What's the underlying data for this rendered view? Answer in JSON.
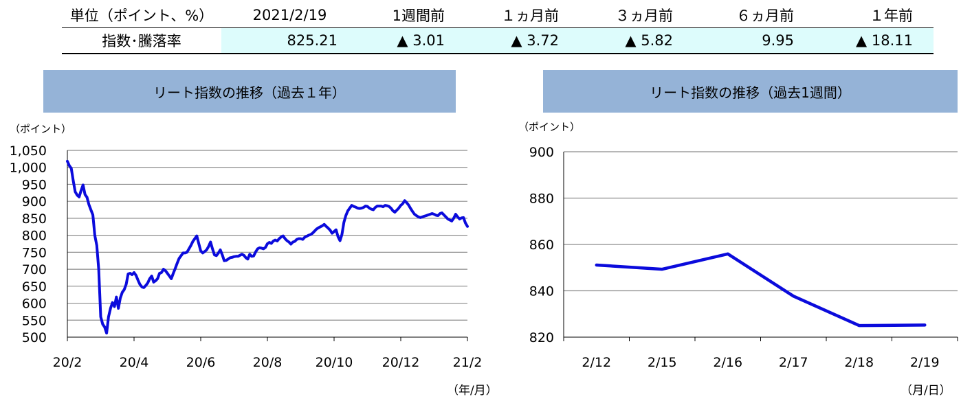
{
  "summary": {
    "headers": [
      "単位（ポイント、%）",
      "2021/2/19",
      "1週間前",
      "１ヵ月前",
      "３ヵ月前",
      "６ヵ月前",
      "１年前"
    ],
    "row_label": "指数･騰落率",
    "values": [
      "825.21",
      "▲ 3.01",
      "▲ 3.72",
      "▲ 5.82",
      "9.95",
      "▲ 18.11"
    ]
  },
  "line_color": "#0b0bdc",
  "chart_data": [
    {
      "type": "line",
      "title": "リート指数の推移（過去１年）",
      "ylabel": "（ポイント）",
      "xlabel": "（年/月）",
      "ylim": [
        500,
        1050
      ],
      "yticks": [
        "500",
        "550",
        "600",
        "650",
        "700",
        "750",
        "800",
        "850",
        "900",
        "950",
        "1,000",
        "1,050"
      ],
      "xticks": [
        "20/2",
        "20/4",
        "20/6",
        "20/8",
        "20/10",
        "20/12",
        "21/2"
      ],
      "grid": true,
      "series": [
        {
          "values": [
            1018,
            1005,
            997,
            960,
            928,
            918,
            913,
            932,
            948,
            920,
            912,
            890,
            875,
            860,
            800,
            770,
            700,
            560,
            538,
            530,
            512,
            560,
            585,
            602,
            590,
            618,
            585,
            615,
            632,
            640,
            656,
            686,
            688,
            684,
            690,
            682,
            668,
            655,
            648,
            646,
            652,
            660,
            672,
            680,
            662,
            666,
            672,
            688,
            690,
            700,
            696,
            688,
            680,
            672,
            688,
            702,
            718,
            732,
            740,
            748,
            748,
            750,
            760,
            770,
            782,
            790,
            798,
            776,
            754,
            748,
            752,
            757,
            767,
            780,
            760,
            742,
            740,
            748,
            757,
            742,
            725,
            726,
            730,
            734,
            735,
            737,
            738,
            738,
            741,
            744,
            741,
            734,
            730,
            744,
            738,
            739,
            751,
            760,
            763,
            762,
            760,
            764,
            775,
            779,
            776,
            783,
            786,
            783,
            790,
            795,
            798,
            790,
            784,
            780,
            774,
            780,
            782,
            788,
            790,
            790,
            788,
            794,
            797,
            800,
            802,
            806,
            812,
            818,
            822,
            825,
            828,
            832,
            826,
            821,
            815,
            806,
            811,
            816,
            796,
            784,
            802,
            838,
            858,
            872,
            880,
            888,
            885,
            883,
            880,
            879,
            880,
            882,
            886,
            885,
            880,
            877,
            875,
            882,
            886,
            886,
            886,
            884,
            888,
            887,
            885,
            880,
            872,
            868,
            874,
            880,
            888,
            893,
            902,
            896,
            889,
            879,
            870,
            862,
            858,
            854,
            852,
            854,
            856,
            858,
            860,
            862,
            864,
            862,
            859,
            858,
            864,
            866,
            860,
            854,
            848,
            845,
            842,
            850,
            862,
            854,
            848,
            851,
            852,
            836,
            826
          ]
        }
      ]
    },
    {
      "type": "line",
      "title": "リート指数の推移（過去1週間）",
      "ylabel": "（ポイント）",
      "xlabel": "（月/日）",
      "ylim": [
        820,
        900
      ],
      "yticks": [
        "820",
        "840",
        "860",
        "880",
        "900"
      ],
      "categories": [
        "2/12",
        "2/15",
        "2/16",
        "2/17",
        "2/18",
        "2/19"
      ],
      "grid": true,
      "series": [
        {
          "values": [
            851.1,
            849.3,
            855.9,
            837.7,
            825.0,
            825.2
          ]
        }
      ]
    }
  ]
}
